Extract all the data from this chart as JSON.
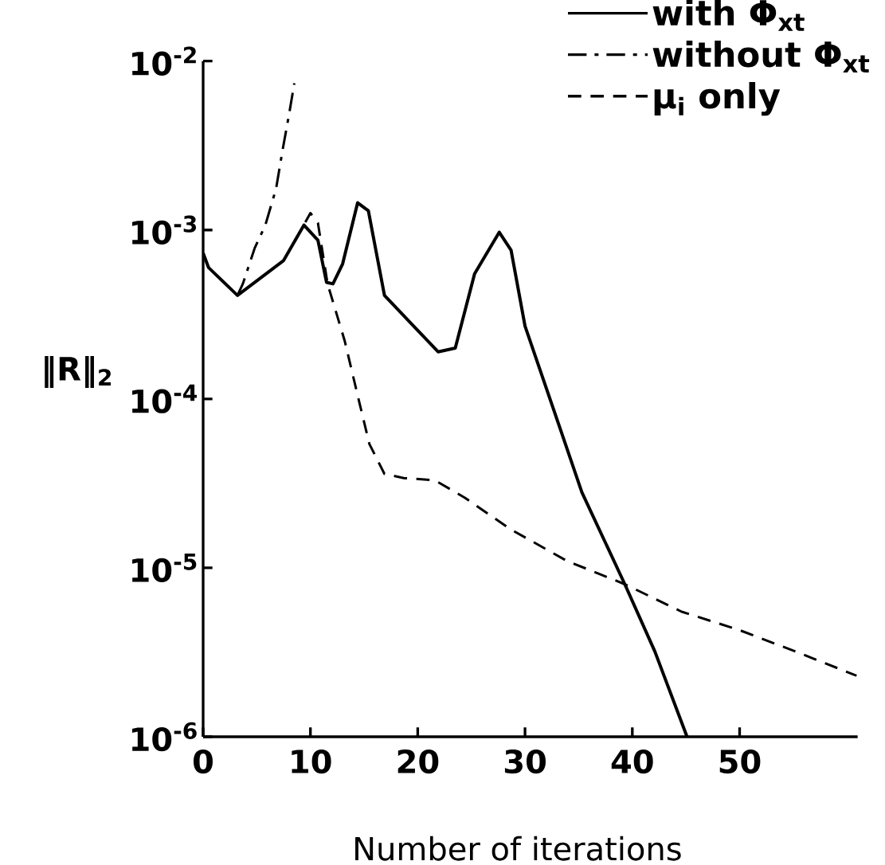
{
  "chart_data": {
    "type": "line",
    "xlabel": "Number of iterations",
    "ylabel": "‖R‖$_{2}$",
    "log": "y",
    "xlim": [
      0,
      61
    ],
    "ylim": [
      1e-06,
      0.01
    ],
    "xticks": [
      0,
      10,
      20,
      30,
      40,
      50
    ],
    "yticks": [
      {
        "value": 1e-06,
        "label": "10$^{-6}$"
      },
      {
        "value": 1e-05,
        "label": "10$^{-5}$"
      },
      {
        "value": 0.0001,
        "label": "10$^{-4}$"
      },
      {
        "value": 0.001,
        "label": "10$^{-3}$"
      },
      {
        "value": 0.01,
        "label": "10$^{-2}$"
      }
    ],
    "legend": "top right",
    "series": [
      {
        "name": "with Φ$_{xt}$",
        "color": "#000000",
        "line_style": "solid",
        "x": [
          0,
          0.5,
          3.2,
          7.5,
          9.4,
          10.7,
          11.5,
          12.1,
          13.0,
          14.4,
          15.4,
          16.9,
          21.9,
          23.5,
          25.3,
          27.6,
          28.7,
          30.0,
          33.3,
          35.3,
          39.3,
          42.1,
          45.1
        ],
        "values": [
          0.00073,
          0.0006,
          0.00041,
          0.00066,
          0.00107,
          0.00087,
          0.00049,
          0.00048,
          0.00063,
          0.00145,
          0.0013,
          0.00041,
          0.00019,
          0.0002,
          0.00055,
          0.00097,
          0.00076,
          0.00027,
          6.6e-05,
          2.8e-05,
          8e-06,
          3.2e-06,
          1e-06
        ]
      },
      {
        "name": "without Φ$_{xt}$",
        "color": "#000000",
        "line_style": "dashdot",
        "x": [
          3.2,
          3.7,
          4.8,
          5.8,
          6.8,
          7.4,
          8.0,
          8.5
        ],
        "values": [
          0.00041,
          0.00048,
          0.00078,
          0.00107,
          0.00176,
          0.00296,
          0.0048,
          0.0074
        ]
      },
      {
        "name": "μ$_{i}$ only",
        "color": "#000000",
        "line_style": "dashed",
        "x": [
          8.5,
          10.0,
          10.7,
          11.6,
          13.2,
          14.4,
          15.5,
          16.9,
          18.7,
          21.6,
          24.4,
          28.6,
          33.9,
          39.3,
          44.6,
          49.9,
          55.2,
          60.9
        ],
        "values": [
          0.00085,
          0.00126,
          0.0011,
          0.00048,
          0.00022,
          0.000105,
          5.4e-05,
          3.6e-05,
          3.4e-05,
          3.3e-05,
          2.6e-05,
          1.7e-05,
          1.1e-05,
          8e-06,
          5.5e-06,
          4.3e-06,
          3.2e-06,
          2.3e-06
        ]
      }
    ]
  }
}
